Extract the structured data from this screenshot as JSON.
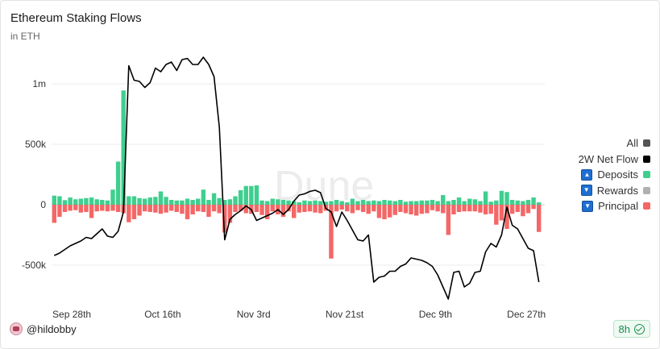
{
  "header": {
    "title": "Ethereum Staking Flows",
    "subtitle": "in ETH"
  },
  "legend": {
    "all_label": "All",
    "net_label": "2W Net Flow",
    "deposits_label": "Deposits",
    "rewards_label": "Rewards",
    "principal_label": "Principal",
    "colors": {
      "all": "#555555",
      "net": "#000000",
      "deposits": "#3ecf8e",
      "rewards": "#b0b0b0",
      "principal": "#f46767"
    }
  },
  "footer": {
    "user": "@hildobby",
    "refresh": "8h"
  },
  "watermark": "Dune",
  "chart_data": {
    "type": "bar",
    "x_start": "2023-09-24",
    "x_end": "2023-12-30",
    "xticks": [
      "Sep 28th",
      "Oct 16th",
      "Nov 3rd",
      "Nov 21st",
      "Dec 9th",
      "Dec 27th"
    ],
    "ylim": [
      -600000,
      1200000
    ],
    "yticks": [
      {
        "v": 1000000,
        "label": "1m"
      },
      {
        "v": 500000,
        "label": "500k"
      },
      {
        "v": 0,
        "label": "0"
      },
      {
        "v": -500000,
        "label": "-500k"
      }
    ],
    "series": [
      {
        "name": "Deposits",
        "type": "bar",
        "values": [
          75000,
          70000,
          38000,
          60000,
          45000,
          50000,
          55000,
          60000,
          45000,
          40000,
          35000,
          125000,
          357000,
          945000,
          70000,
          70000,
          55000,
          50000,
          60000,
          65000,
          110000,
          65000,
          40000,
          35000,
          35000,
          50000,
          40000,
          50000,
          125000,
          40000,
          95000,
          55000,
          40000,
          45000,
          70000,
          120000,
          155000,
          155000,
          160000,
          35000,
          30000,
          50000,
          45000,
          40000,
          35000,
          30000,
          20000,
          35000,
          30000,
          35000,
          30000,
          25000,
          30000,
          40000,
          30000,
          20000,
          50000,
          30000,
          40000,
          30000,
          35000,
          30000,
          40000,
          35000,
          30000,
          40000,
          25000,
          30000,
          30000,
          35000,
          35000,
          40000,
          30000,
          80000,
          30000,
          40000,
          60000,
          30000,
          50000,
          45000,
          30000,
          110000,
          25000,
          35000,
          115000,
          105000,
          40000,
          35000,
          30000,
          40000,
          60000,
          20000
        ]
      },
      {
        "name": "Principal",
        "type": "bar",
        "values": [
          -150000,
          -100000,
          -60000,
          -50000,
          -45000,
          -65000,
          -60000,
          -110000,
          -55000,
          -50000,
          -55000,
          -50000,
          -60000,
          -70000,
          -145000,
          -120000,
          -90000,
          -55000,
          -60000,
          -65000,
          -75000,
          -65000,
          -50000,
          -60000,
          -75000,
          -120000,
          -80000,
          -55000,
          -60000,
          -100000,
          -55000,
          -70000,
          -230000,
          -150000,
          -60000,
          -50000,
          -70000,
          -75000,
          -60000,
          -85000,
          -120000,
          -55000,
          -80000,
          -100000,
          -55000,
          -110000,
          -65000,
          -60000,
          -55000,
          -65000,
          -70000,
          -50000,
          -445000,
          -55000,
          -40000,
          -55000,
          -70000,
          -45000,
          -60000,
          -75000,
          -55000,
          -110000,
          -120000,
          -105000,
          -85000,
          -60000,
          -70000,
          -80000,
          -90000,
          -75000,
          -70000,
          -45000,
          -55000,
          -70000,
          -250000,
          -80000,
          -60000,
          -55000,
          -55000,
          -55000,
          -65000,
          -80000,
          -75000,
          -165000,
          -130000,
          -200000,
          -75000,
          -60000,
          -95000,
          -70000,
          -35000,
          -225000
        ]
      },
      {
        "name": "2W Net Flow",
        "type": "line",
        "values": [
          -420000,
          -400000,
          -370000,
          -340000,
          -320000,
          -300000,
          -270000,
          -280000,
          -240000,
          -200000,
          -260000,
          -270000,
          -220000,
          -60000,
          1150000,
          1030000,
          1020000,
          970000,
          1010000,
          1130000,
          1100000,
          1160000,
          1180000,
          1110000,
          1200000,
          1210000,
          1160000,
          1160000,
          1220000,
          1160000,
          1060000,
          640000,
          -290000,
          -120000,
          -80000,
          -50000,
          -10000,
          -40000,
          -130000,
          -110000,
          -90000,
          -70000,
          -40000,
          -80000,
          -40000,
          30000,
          80000,
          90000,
          110000,
          120000,
          100000,
          -30000,
          -60000,
          -180000,
          -60000,
          -130000,
          -210000,
          -290000,
          -300000,
          -250000,
          -640000,
          -600000,
          -590000,
          -550000,
          -550000,
          -510000,
          -490000,
          -440000,
          -450000,
          -460000,
          -480000,
          -510000,
          -580000,
          -680000,
          -780000,
          -560000,
          -550000,
          -680000,
          -650000,
          -560000,
          -550000,
          -390000,
          -320000,
          -350000,
          -250000,
          -20000,
          -170000,
          -200000,
          -280000,
          -360000,
          -380000,
          -640000
        ]
      }
    ]
  }
}
